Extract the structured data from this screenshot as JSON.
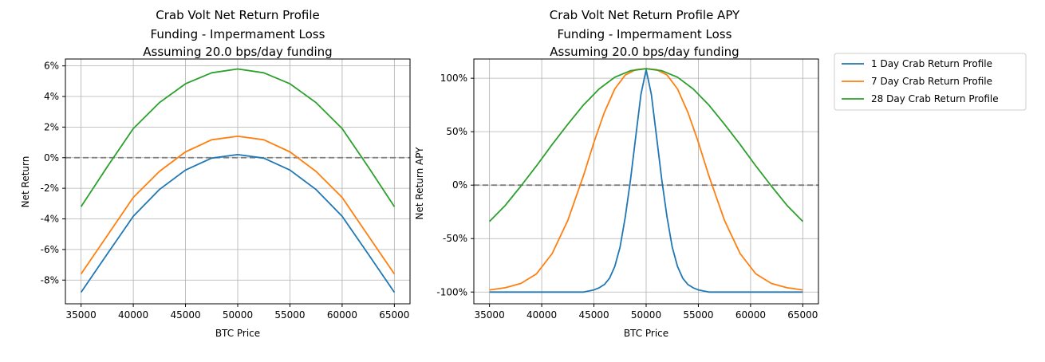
{
  "chart_data": [
    {
      "type": "line",
      "title_lines": [
        "Crab Volt Net Return Profile",
        "Funding - Impermament Loss",
        "Assuming 20.0 bps/day funding"
      ],
      "xlabel": "BTC Price",
      "ylabel": "Net Return",
      "xlim": [
        33500,
        66500
      ],
      "ylim": [
        -0.0955,
        0.0645
      ],
      "xticks": [
        35000,
        40000,
        45000,
        50000,
        55000,
        60000,
        65000
      ],
      "xtick_labels": [
        "35000",
        "40000",
        "45000",
        "50000",
        "55000",
        "60000",
        "65000"
      ],
      "yticks": [
        -0.08,
        -0.06,
        -0.04,
        -0.02,
        0,
        0.02,
        0.04,
        0.06
      ],
      "ytick_labels": [
        "-8%",
        "-6%",
        "-4%",
        "-2%",
        "0%",
        "2%",
        "4%",
        "6%"
      ],
      "grid": true,
      "reference_line": {
        "y": 0,
        "style": "dashed",
        "color": "#808080"
      },
      "x": [
        35000,
        37500,
        40000,
        42500,
        45000,
        47500,
        50000,
        52500,
        55000,
        57500,
        60000,
        62500,
        65000
      ],
      "series": [
        {
          "name": "1 Day Crab Return Profile",
          "color": "#1f77b4",
          "values": [
            -0.088,
            -0.063,
            -0.0383,
            -0.0208,
            -0.0081,
            -0.0003,
            0.002,
            -0.0003,
            -0.0081,
            -0.0208,
            -0.0383,
            -0.063,
            -0.088
          ]
        },
        {
          "name": "7 Day Crab Return Profile",
          "color": "#ff7f0e",
          "values": [
            -0.076,
            -0.051,
            -0.026,
            -0.009,
            0.0038,
            0.0117,
            0.014,
            0.0117,
            0.0038,
            -0.009,
            -0.026,
            -0.051,
            -0.076
          ]
        },
        {
          "name": "28 Day Crab Return Profile",
          "color": "#2ca02c",
          "values": [
            -0.032,
            -0.006,
            0.019,
            0.036,
            0.0483,
            0.0555,
            0.058,
            0.0555,
            0.0483,
            0.036,
            0.019,
            -0.006,
            -0.032
          ]
        }
      ]
    },
    {
      "type": "line",
      "title_lines": [
        "Crab Volt Net Return Profile APY",
        "Funding - Impermament Loss",
        "Assuming 20.0 bps/day funding"
      ],
      "xlabel": "BTC Price",
      "ylabel": "Net Return APY",
      "xlim": [
        33500,
        66500
      ],
      "ylim": [
        -1.11,
        1.18
      ],
      "xticks": [
        35000,
        40000,
        45000,
        50000,
        55000,
        60000,
        65000
      ],
      "xtick_labels": [
        "35000",
        "40000",
        "45000",
        "50000",
        "55000",
        "60000",
        "65000"
      ],
      "yticks": [
        -1.0,
        -0.5,
        0,
        0.5,
        1.0
      ],
      "ytick_labels": [
        "-100%",
        "-50%",
        "0%",
        "50%",
        "100%"
      ],
      "grid": true,
      "reference_line": {
        "y": 0,
        "style": "dashed",
        "color": "#808080"
      },
      "series": [
        {
          "name": "1 Day Crab Return Profile",
          "color": "#1f77b4",
          "x": [
            35000,
            44000,
            45000,
            45500,
            46000,
            46500,
            47000,
            47500,
            48000,
            48500,
            49000,
            49500,
            50000,
            50500,
            51000,
            51500,
            52000,
            52500,
            53000,
            53500,
            54000,
            54500,
            55000,
            56000,
            65000
          ],
          "values": [
            -1.0,
            -1.0,
            -0.98,
            -0.96,
            -0.93,
            -0.87,
            -0.76,
            -0.58,
            -0.3,
            0.05,
            0.45,
            0.85,
            1.08,
            0.85,
            0.45,
            0.05,
            -0.3,
            -0.58,
            -0.76,
            -0.87,
            -0.93,
            -0.96,
            -0.98,
            -1.0,
            -1.0
          ]
        },
        {
          "name": "7 Day Crab Return Profile",
          "color": "#ff7f0e",
          "x": [
            35000,
            36500,
            38000,
            39500,
            41000,
            42500,
            44000,
            45000,
            46000,
            47000,
            48000,
            49000,
            50000,
            51000,
            52000,
            53000,
            54000,
            55000,
            56000,
            57500,
            59000,
            60500,
            62000,
            63500,
            65000
          ],
          "values": [
            -0.98,
            -0.96,
            -0.92,
            -0.83,
            -0.64,
            -0.33,
            0.09,
            0.4,
            0.68,
            0.9,
            1.03,
            1.08,
            1.09,
            1.08,
            1.03,
            0.9,
            0.68,
            0.4,
            0.09,
            -0.33,
            -0.64,
            -0.83,
            -0.92,
            -0.96,
            -0.98
          ]
        },
        {
          "name": "28 Day Crab Return Profile",
          "color": "#2ca02c",
          "x": [
            35000,
            36500,
            38000,
            39500,
            41000,
            42500,
            44000,
            45500,
            47000,
            48500,
            50000,
            51500,
            53000,
            54500,
            56000,
            57500,
            59000,
            60500,
            62000,
            63500,
            65000
          ],
          "values": [
            -0.34,
            -0.19,
            -0.01,
            0.18,
            0.38,
            0.57,
            0.75,
            0.9,
            1.01,
            1.07,
            1.09,
            1.07,
            1.01,
            0.9,
            0.75,
            0.57,
            0.38,
            0.18,
            -0.01,
            -0.19,
            -0.34
          ]
        }
      ]
    }
  ],
  "legend": {
    "placement": "outside right",
    "entries": [
      {
        "label": "1 Day Crab Return Profile",
        "color": "#1f77b4"
      },
      {
        "label": "7 Day Crab Return Profile",
        "color": "#ff7f0e"
      },
      {
        "label": "28 Day Crab Return Profile",
        "color": "#2ca02c"
      }
    ]
  }
}
